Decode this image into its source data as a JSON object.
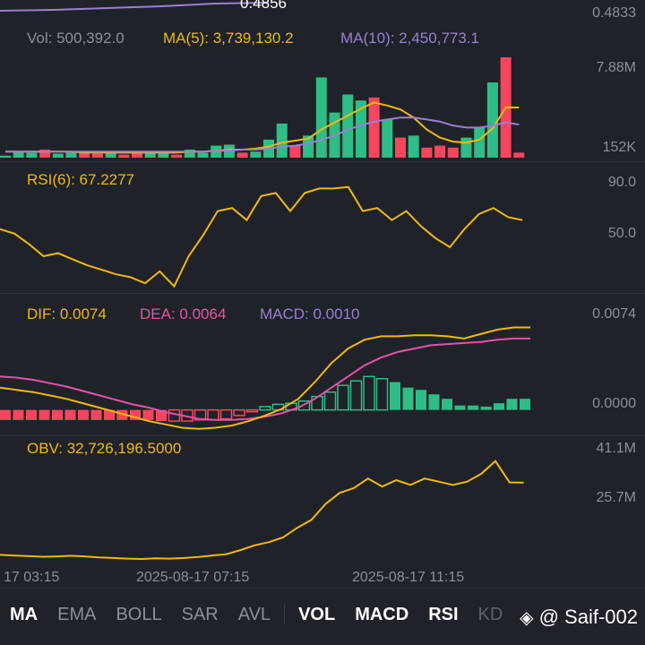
{
  "price": {
    "label": "0.4856",
    "axis_label": "0.4833"
  },
  "volume": {
    "vol_label": "Vol: 500,392.0",
    "ma5_label": "MA(5): 3,739,130.2",
    "ma10_label": "MA(10): 2,450,773.1",
    "axis_top": "7.88M",
    "axis_bottom": "152K",
    "bars": [
      {
        "v": 0.02,
        "up": true
      },
      {
        "v": 0.06,
        "up": true
      },
      {
        "v": 0.05,
        "up": true
      },
      {
        "v": 0.08,
        "up": false
      },
      {
        "v": 0.04,
        "up": true
      },
      {
        "v": 0.06,
        "up": true
      },
      {
        "v": 0.05,
        "up": false
      },
      {
        "v": 0.04,
        "up": false
      },
      {
        "v": 0.06,
        "up": true
      },
      {
        "v": 0.03,
        "up": false
      },
      {
        "v": 0.05,
        "up": false
      },
      {
        "v": 0.06,
        "up": true
      },
      {
        "v": 0.06,
        "up": true
      },
      {
        "v": 0.03,
        "up": false
      },
      {
        "v": 0.08,
        "up": true
      },
      {
        "v": 0.05,
        "up": true
      },
      {
        "v": 0.12,
        "up": true
      },
      {
        "v": 0.13,
        "up": true
      },
      {
        "v": 0.05,
        "up": false
      },
      {
        "v": 0.06,
        "up": true
      },
      {
        "v": 0.18,
        "up": true
      },
      {
        "v": 0.34,
        "up": true
      },
      {
        "v": 0.12,
        "up": false
      },
      {
        "v": 0.22,
        "up": true
      },
      {
        "v": 0.8,
        "up": true
      },
      {
        "v": 0.45,
        "up": true
      },
      {
        "v": 0.63,
        "up": true
      },
      {
        "v": 0.57,
        "up": true
      },
      {
        "v": 0.6,
        "up": false
      },
      {
        "v": 0.38,
        "up": true
      },
      {
        "v": 0.2,
        "up": false
      },
      {
        "v": 0.22,
        "up": true
      },
      {
        "v": 0.1,
        "up": false
      },
      {
        "v": 0.12,
        "up": false
      },
      {
        "v": 0.1,
        "up": false
      },
      {
        "v": 0.2,
        "up": true
      },
      {
        "v": 0.3,
        "up": true
      },
      {
        "v": 0.75,
        "up": true
      },
      {
        "v": 1.0,
        "up": false
      },
      {
        "v": 0.05,
        "up": false
      }
    ],
    "ma5": [
      0.06,
      0.06,
      0.06,
      0.06,
      0.06,
      0.06,
      0.05,
      0.05,
      0.05,
      0.05,
      0.05,
      0.05,
      0.05,
      0.05,
      0.06,
      0.06,
      0.07,
      0.08,
      0.08,
      0.09,
      0.11,
      0.15,
      0.17,
      0.19,
      0.28,
      0.35,
      0.42,
      0.49,
      0.55,
      0.52,
      0.48,
      0.4,
      0.28,
      0.2,
      0.16,
      0.15,
      0.18,
      0.29,
      0.5,
      0.5
    ],
    "ma10": [
      0.06,
      0.06,
      0.06,
      0.06,
      0.06,
      0.06,
      0.06,
      0.06,
      0.06,
      0.06,
      0.06,
      0.06,
      0.06,
      0.06,
      0.06,
      0.06,
      0.07,
      0.07,
      0.08,
      0.08,
      0.09,
      0.11,
      0.12,
      0.14,
      0.18,
      0.22,
      0.28,
      0.32,
      0.36,
      0.38,
      0.4,
      0.4,
      0.38,
      0.36,
      0.32,
      0.3,
      0.3,
      0.32,
      0.35,
      0.33
    ]
  },
  "rsi": {
    "label": "RSI(6): 67.2277",
    "axis_top": "90.0",
    "axis_mid": "50.0",
    "values": [
      58,
      55,
      48,
      40,
      42,
      38,
      34,
      31,
      28,
      26,
      22,
      30,
      20,
      40,
      54,
      70,
      72,
      64,
      80,
      82,
      70,
      82,
      85,
      85,
      86,
      70,
      72,
      64,
      70,
      60,
      52,
      46,
      58,
      68,
      72,
      66,
      64
    ],
    "ymin": 15,
    "ymax": 90
  },
  "macd": {
    "dif_label": "DIF: 0.0074",
    "dea_label": "DEA: 0.0064",
    "macd_label": "MACD: 0.0010",
    "axis_top": "0.0074",
    "axis_zero": "0.0000",
    "hist": [
      -0.0009,
      -0.0009,
      -0.0009,
      -0.0009,
      -0.0009,
      -0.0009,
      -0.0009,
      -0.0009,
      -0.0009,
      -0.0009,
      -0.0009,
      -0.0009,
      -0.001,
      -0.001,
      -0.001,
      -0.0009,
      -0.0009,
      -0.0008,
      -0.0005,
      -0.0001,
      0.0003,
      0.0005,
      0.0006,
      0.0008,
      0.0012,
      0.0016,
      0.0022,
      0.0026,
      0.003,
      0.0028,
      0.0025,
      0.002,
      0.0018,
      0.0014,
      0.001,
      0.0004,
      0.0004,
      0.0003,
      0.0006,
      0.001,
      0.001
    ],
    "dif": [
      0.002,
      0.0018,
      0.0016,
      0.0013,
      0.001,
      0.0006,
      0.0002,
      -0.0002,
      -0.0006,
      -0.001,
      -0.0013,
      -0.0016,
      -0.0017,
      -0.0016,
      -0.0014,
      -0.001,
      -0.0005,
      0.0001,
      0.001,
      0.0025,
      0.0042,
      0.0055,
      0.0063,
      0.0066,
      0.0066,
      0.0067,
      0.0067,
      0.0066,
      0.0064,
      0.0068,
      0.0072,
      0.0074,
      0.0074
    ],
    "dea": [
      0.003,
      0.0029,
      0.0027,
      0.0024,
      0.0021,
      0.0017,
      0.0013,
      0.0009,
      0.0005,
      0.0002,
      -0.0002,
      -0.0005,
      -0.0008,
      -0.0009,
      -0.0009,
      -0.0008,
      -0.0006,
      -0.0003,
      0.0002,
      0.001,
      0.002,
      0.003,
      0.004,
      0.0047,
      0.0052,
      0.0055,
      0.0058,
      0.0059,
      0.006,
      0.0061,
      0.0063,
      0.0064,
      0.0064
    ],
    "ymin": -0.0022,
    "ymax": 0.008
  },
  "obv": {
    "label": "OBV: 32,726,196.5000",
    "axis_top": "41.1M",
    "axis_mid": "25.7M",
    "values": [
      10.0,
      9.8,
      9.6,
      9.4,
      9.5,
      9.7,
      9.5,
      9.2,
      9.0,
      8.8,
      8.7,
      8.9,
      8.8,
      9.0,
      9.3,
      9.8,
      10.2,
      11.5,
      13.0,
      14.0,
      15.5,
      18.5,
      21.0,
      26.0,
      29.5,
      31.0,
      34.0,
      31.5,
      33.5,
      32.0,
      34.0,
      33.0,
      32.0,
      33.0,
      35.5,
      39.5,
      32.8,
      32.7
    ],
    "ymin": 7.0,
    "ymax": 41.1
  },
  "time_axis": [
    "17 03:15",
    "2025-08-17 07:15",
    "2025-08-17 11:15"
  ],
  "tabs": [
    "MA",
    "EMA",
    "BOLL",
    "SAR",
    "AVL",
    "VOL",
    "MACD",
    "RSI",
    "KD"
  ],
  "active_tabs": [
    "MA",
    "VOL",
    "MACD",
    "RSI"
  ],
  "watermark": "@ Saif-002",
  "colors": {
    "up": "#2ebd85",
    "down": "#f6465d",
    "yellow": "#f0b90b",
    "purple": "#9b7fd4",
    "pink": "#e552a5",
    "bg": "#1f2229"
  }
}
